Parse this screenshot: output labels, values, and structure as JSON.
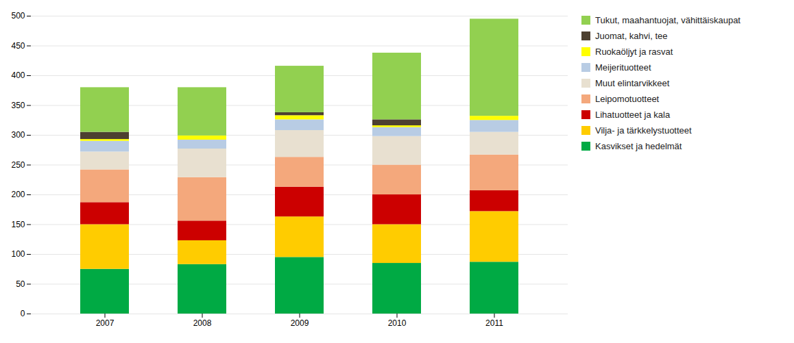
{
  "chart_data": {
    "type": "bar",
    "stacked": true,
    "categories": [
      "2007",
      "2008",
      "2009",
      "2010",
      "2011"
    ],
    "series": [
      {
        "name": "Kasvikset ja hedelmät",
        "color": "#00aa44",
        "values": [
          75,
          83,
          95,
          85,
          87
        ]
      },
      {
        "name": "Vilja- ja tärkkelystuotteet",
        "color": "#ffcc00",
        "values": [
          75,
          40,
          68,
          65,
          85
        ]
      },
      {
        "name": "Lihatuotteet ja kala",
        "color": "#cc0000",
        "values": [
          37,
          33,
          50,
          50,
          35
        ]
      },
      {
        "name": "Leipomotuotteet",
        "color": "#f4a87c",
        "values": [
          55,
          73,
          50,
          50,
          60
        ]
      },
      {
        "name": "Muut elintarvikkeet",
        "color": "#e8e0d0",
        "values": [
          30,
          48,
          45,
          48,
          38
        ]
      },
      {
        "name": "Meijerituotteet",
        "color": "#b8cce4",
        "values": [
          18,
          15,
          18,
          15,
          20
        ]
      },
      {
        "name": "Ruokaöljyt ja rasvat",
        "color": "#ffff00",
        "values": [
          3,
          7,
          7,
          3,
          7
        ]
      },
      {
        "name": "Juomat, kahvi, tee",
        "color": "#4d4030",
        "values": [
          12,
          0,
          5,
          10,
          0
        ]
      },
      {
        "name": "Tukut, maahantuojat, vähittäiskaupat",
        "color": "#92d050",
        "values": [
          75,
          81,
          78,
          112,
          163
        ]
      }
    ],
    "ylim": [
      0,
      500
    ],
    "yticks": [
      0,
      50,
      100,
      150,
      200,
      250,
      300,
      350,
      400,
      450,
      500
    ],
    "grid": true,
    "legend": "right"
  }
}
